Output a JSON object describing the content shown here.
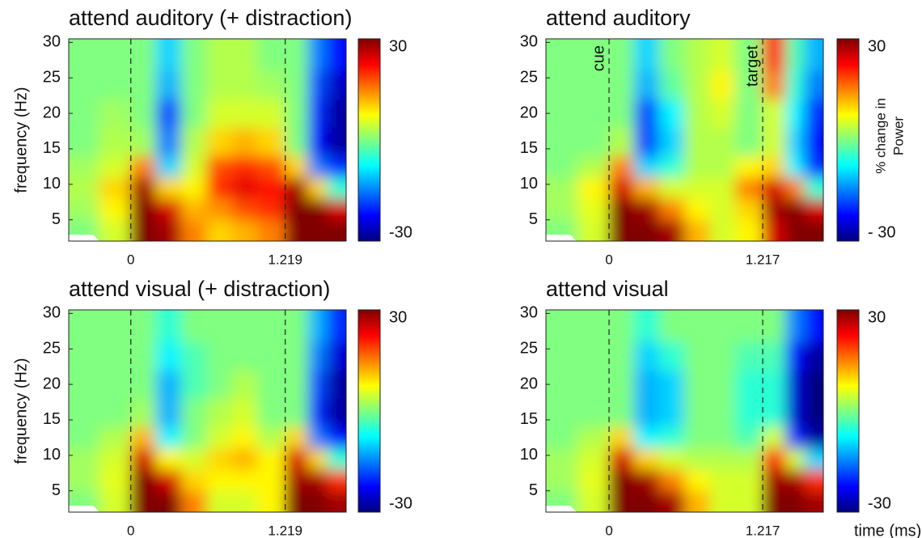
{
  "chart_data": [
    {
      "type": "heatmap",
      "title": "attend auditory  (+ distraction)",
      "ylabel": "frequency (Hz)",
      "xlim": [
        -0.49,
        1.7
      ],
      "ylim": [
        2,
        30.5
      ],
      "xticks": [
        0,
        1.219
      ],
      "yticks": [
        5,
        10,
        15,
        20,
        25,
        30
      ],
      "x_edges": [
        -0.5,
        -0.25,
        0,
        0.2,
        0.4,
        0.6,
        0.8,
        1.0,
        1.219,
        1.4,
        1.55,
        1.7
      ],
      "y_edges": [
        2,
        5,
        8,
        11,
        14,
        18,
        22,
        26,
        30
      ],
      "z": [
        [
          0,
          5,
          30,
          28,
          15,
          10,
          12,
          15,
          30,
          30,
          30
        ],
        [
          2,
          8,
          30,
          25,
          12,
          14,
          18,
          20,
          30,
          30,
          25
        ],
        [
          3,
          10,
          28,
          10,
          8,
          20,
          24,
          22,
          28,
          10,
          -5
        ],
        [
          2,
          5,
          15,
          -10,
          5,
          18,
          20,
          18,
          10,
          -15,
          -20
        ],
        [
          0,
          3,
          2,
          -15,
          3,
          10,
          12,
          10,
          0,
          -22,
          -28
        ],
        [
          0,
          2,
          0,
          -18,
          0,
          5,
          5,
          5,
          0,
          -20,
          -28
        ],
        [
          0,
          0,
          0,
          -12,
          0,
          3,
          3,
          2,
          0,
          -18,
          -26
        ],
        [
          0,
          0,
          0,
          -10,
          0,
          3,
          3,
          0,
          0,
          -15,
          -22
        ]
      ],
      "clim": [
        -30,
        30
      ],
      "cticks": [
        -30,
        30
      ]
    },
    {
      "type": "heatmap",
      "title": "attend auditory",
      "xlim": [
        -0.5,
        1.697
      ],
      "ylim": [
        2,
        30.5
      ],
      "xticks": [
        0,
        1.217
      ],
      "yticks": [
        5,
        10,
        15,
        20,
        25,
        30
      ],
      "x_edges": [
        -0.5,
        -0.25,
        0,
        0.2,
        0.4,
        0.6,
        0.8,
        1.0,
        1.217,
        1.4,
        1.55,
        1.7
      ],
      "y_edges": [
        2,
        5,
        8,
        11,
        14,
        18,
        22,
        26,
        30
      ],
      "z": [
        [
          0,
          5,
          30,
          30,
          28,
          12,
          5,
          8,
          25,
          30,
          30
        ],
        [
          2,
          6,
          30,
          28,
          15,
          8,
          5,
          10,
          28,
          30,
          25
        ],
        [
          2,
          8,
          25,
          12,
          5,
          5,
          5,
          15,
          25,
          15,
          -5
        ],
        [
          0,
          3,
          15,
          -10,
          -5,
          3,
          3,
          8,
          10,
          -8,
          -20
        ],
        [
          0,
          0,
          3,
          -18,
          -10,
          3,
          3,
          0,
          5,
          -10,
          -22
        ],
        [
          0,
          0,
          0,
          -18,
          -8,
          3,
          5,
          0,
          5,
          -8,
          -20
        ],
        [
          0,
          0,
          0,
          -12,
          -2,
          3,
          8,
          0,
          15,
          -5,
          -15
        ],
        [
          0,
          0,
          0,
          -10,
          0,
          3,
          5,
          0,
          20,
          -3,
          -12
        ]
      ],
      "clim": [
        -30,
        30
      ],
      "cticks": [
        {
          "value": -30,
          "label": "- 30"
        },
        30
      ],
      "colorbar_label": [
        "% change in",
        "Power"
      ],
      "annotations": [
        "cue",
        "target"
      ]
    },
    {
      "type": "heatmap",
      "title": "attend visual  (+ distraction)",
      "ylabel": "frequency (Hz)",
      "xlim": [
        -0.49,
        1.7
      ],
      "ylim": [
        2,
        30.5
      ],
      "xticks": [
        0,
        1.219
      ],
      "yticks": [
        5,
        10,
        15,
        20,
        25,
        30
      ],
      "x_edges": [
        -0.5,
        -0.25,
        0,
        0.2,
        0.4,
        0.6,
        0.8,
        1.0,
        1.219,
        1.4,
        1.55,
        1.7
      ],
      "y_edges": [
        2,
        5,
        8,
        11,
        14,
        18,
        22,
        26,
        30
      ],
      "z": [
        [
          0,
          5,
          30,
          30,
          15,
          5,
          5,
          8,
          30,
          30,
          28
        ],
        [
          2,
          6,
          30,
          25,
          10,
          8,
          8,
          8,
          28,
          28,
          20
        ],
        [
          2,
          5,
          25,
          8,
          5,
          10,
          12,
          8,
          25,
          10,
          -5
        ],
        [
          0,
          3,
          12,
          -8,
          0,
          5,
          8,
          3,
          10,
          -15,
          -22
        ],
        [
          0,
          0,
          2,
          -12,
          0,
          3,
          5,
          0,
          0,
          -20,
          -28
        ],
        [
          0,
          0,
          0,
          -12,
          -3,
          0,
          3,
          0,
          0,
          -18,
          -28
        ],
        [
          0,
          0,
          0,
          -8,
          -3,
          0,
          0,
          0,
          0,
          -15,
          -25
        ],
        [
          0,
          0,
          0,
          -5,
          0,
          0,
          0,
          0,
          0,
          -12,
          -20
        ]
      ],
      "clim": [
        -30,
        30
      ],
      "cticks": [
        -30,
        30
      ]
    },
    {
      "type": "heatmap",
      "title": "attend visual",
      "xlabel": "time (ms)",
      "xlim": [
        -0.5,
        1.697
      ],
      "ylim": [
        2,
        30.5
      ],
      "xticks": [
        0,
        1.217
      ],
      "yticks": [
        5,
        10,
        15,
        20,
        25,
        30
      ],
      "x_edges": [
        -0.5,
        -0.25,
        0,
        0.2,
        0.4,
        0.6,
        0.8,
        1.0,
        1.217,
        1.4,
        1.55,
        1.7
      ],
      "y_edges": [
        2,
        5,
        8,
        11,
        14,
        18,
        22,
        26,
        30
      ],
      "z": [
        [
          0,
          5,
          30,
          30,
          28,
          12,
          5,
          5,
          30,
          30,
          28
        ],
        [
          2,
          6,
          30,
          28,
          15,
          8,
          5,
          5,
          28,
          28,
          20
        ],
        [
          2,
          5,
          25,
          10,
          5,
          3,
          3,
          3,
          22,
          5,
          -10
        ],
        [
          0,
          3,
          10,
          -8,
          -5,
          0,
          0,
          -3,
          5,
          -20,
          -28
        ],
        [
          0,
          0,
          0,
          -12,
          -10,
          0,
          0,
          -5,
          -5,
          -25,
          -30
        ],
        [
          0,
          0,
          0,
          -12,
          -10,
          0,
          0,
          -5,
          -5,
          -25,
          -30
        ],
        [
          0,
          0,
          0,
          -10,
          -5,
          0,
          0,
          -3,
          -3,
          -22,
          -28
        ],
        [
          0,
          0,
          0,
          -5,
          0,
          0,
          0,
          0,
          0,
          -15,
          -22
        ]
      ],
      "clim": [
        -30,
        30
      ],
      "cticks": [
        -30,
        30
      ]
    }
  ]
}
